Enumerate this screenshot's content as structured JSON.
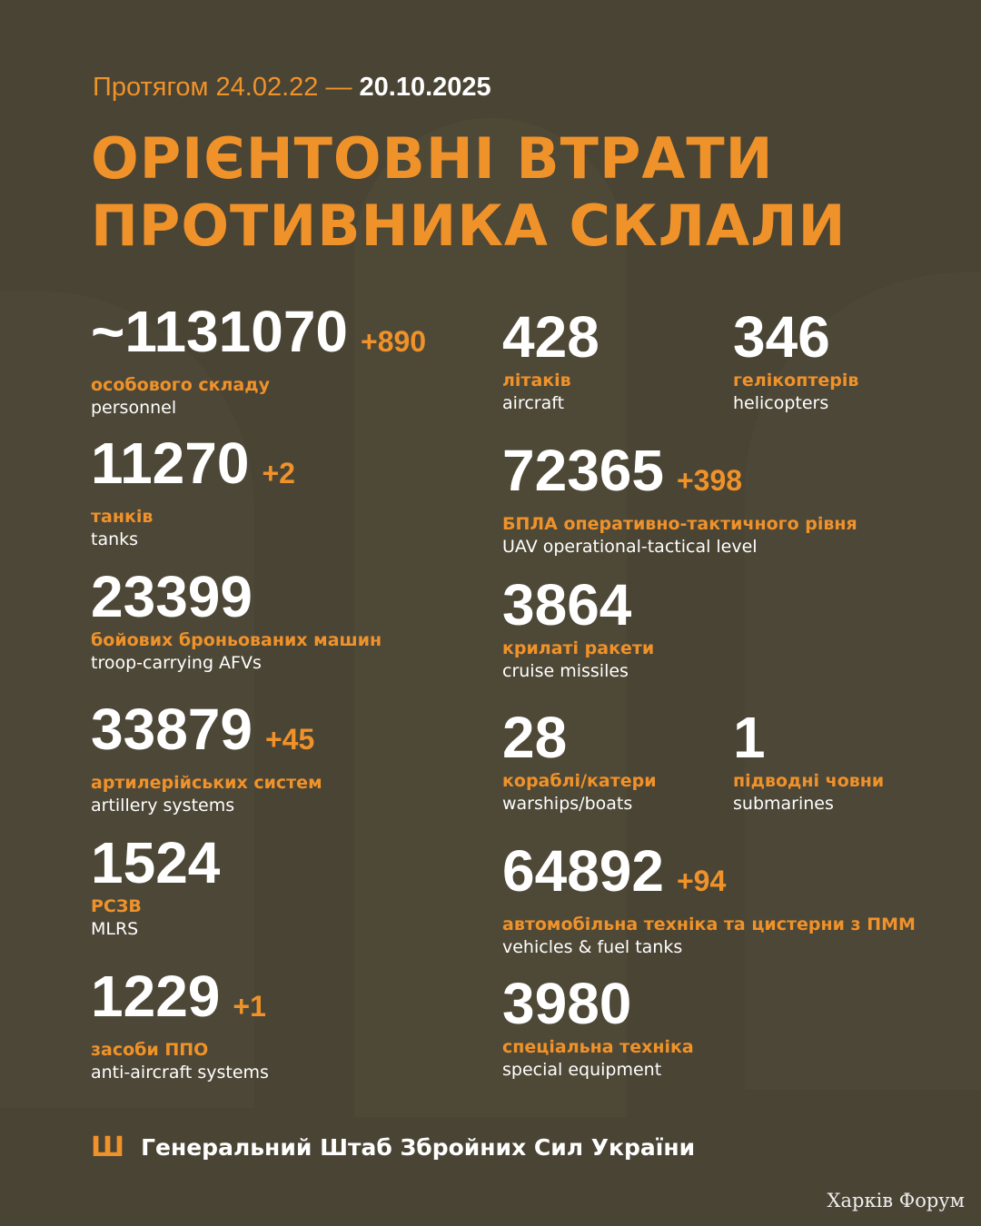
{
  "header": {
    "period_prefix": "Протягом 24.02.22 —",
    "period_end": "20.10.2025",
    "title_line1": "ОРІЄНТОВНІ ВТРАТИ",
    "title_line2": "ПРОТИВНИКА СКЛАЛИ"
  },
  "colors": {
    "background": "#4a4434",
    "accent": "#f0922a",
    "text": "#ffffff"
  },
  "stats": {
    "personnel": {
      "value": "~1131070",
      "delta": "+890",
      "ua": "особового складу",
      "en": "personnel"
    },
    "tanks": {
      "value": "11270",
      "delta": "+2",
      "ua": "танків",
      "en": "tanks"
    },
    "afv": {
      "value": "23399",
      "ua": "бойових броньованих машин",
      "en": "troop-carrying AFVs"
    },
    "artillery": {
      "value": "33879",
      "delta": "+45",
      "ua": "артилерійських систем",
      "en": "artillery systems"
    },
    "mlrs": {
      "value": "1524",
      "ua": "РСЗВ",
      "en": "MLRS"
    },
    "air_defense": {
      "value": "1229",
      "delta": "+1",
      "ua": "засоби ППО",
      "en": "anti-aircraft systems"
    },
    "aircraft": {
      "value": "428",
      "ua": "літаків",
      "en": "aircraft"
    },
    "helicopters": {
      "value": "346",
      "ua": "гелікоптерів",
      "en": "helicopters"
    },
    "uav": {
      "value": "72365",
      "delta": "+398",
      "ua": "БПЛА оперативно-тактичного рівня",
      "en": "UAV operational-tactical level"
    },
    "cruise_missiles": {
      "value": "3864",
      "ua": "крилаті ракети",
      "en": "cruise missiles"
    },
    "warships": {
      "value": "28",
      "ua": "кораблі/катери",
      "en": "warships/boats"
    },
    "submarines": {
      "value": "1",
      "ua": "підводні човни",
      "en": "submarines"
    },
    "vehicles": {
      "value": "64892",
      "delta": "+94",
      "ua": "автомобільна техніка та цистерни з ПММ",
      "en": "vehicles & fuel tanks"
    },
    "special": {
      "value": "3980",
      "ua": "спеціальна техніка",
      "en": "special equipment"
    }
  },
  "footer": {
    "icon": "trident-icon",
    "text": "Генеральний Штаб Збройних Сил України"
  },
  "watermark": "Харків Форум"
}
